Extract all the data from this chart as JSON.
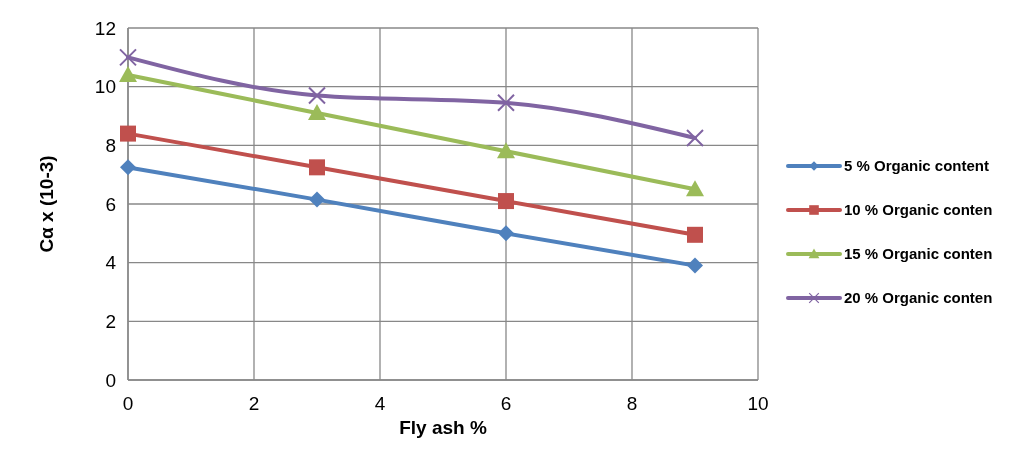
{
  "chart_data": {
    "type": "line",
    "xlabel": "Fly ash %",
    "ylabel": "Cα x (10-3)",
    "x": [
      0,
      3,
      6,
      9
    ],
    "xlim": [
      0,
      10
    ],
    "xticks": [
      0,
      2,
      4,
      6,
      8,
      10
    ],
    "ylim": [
      0,
      12
    ],
    "yticks": [
      0,
      2,
      4,
      6,
      8,
      10,
      12
    ],
    "grid": true,
    "legend": "right",
    "line_style": "solid",
    "series": [
      {
        "name": "5 % Organic content",
        "color": "#4f81bd",
        "marker": "diamond",
        "values": [
          7.25,
          6.15,
          5.0,
          3.9
        ]
      },
      {
        "name": "10 % Organic conten",
        "color": "#c0504d",
        "marker": "square",
        "values": [
          8.4,
          7.25,
          6.1,
          4.95
        ]
      },
      {
        "name": "15 % Organic conten",
        "color": "#9bbb59",
        "marker": "triangle",
        "values": [
          10.4,
          9.1,
          7.8,
          6.5
        ]
      },
      {
        "name": "20 % Organic conten",
        "color": "#8064a2",
        "marker": "cross",
        "values": [
          11.0,
          9.7,
          9.45,
          8.25
        ]
      }
    ]
  }
}
